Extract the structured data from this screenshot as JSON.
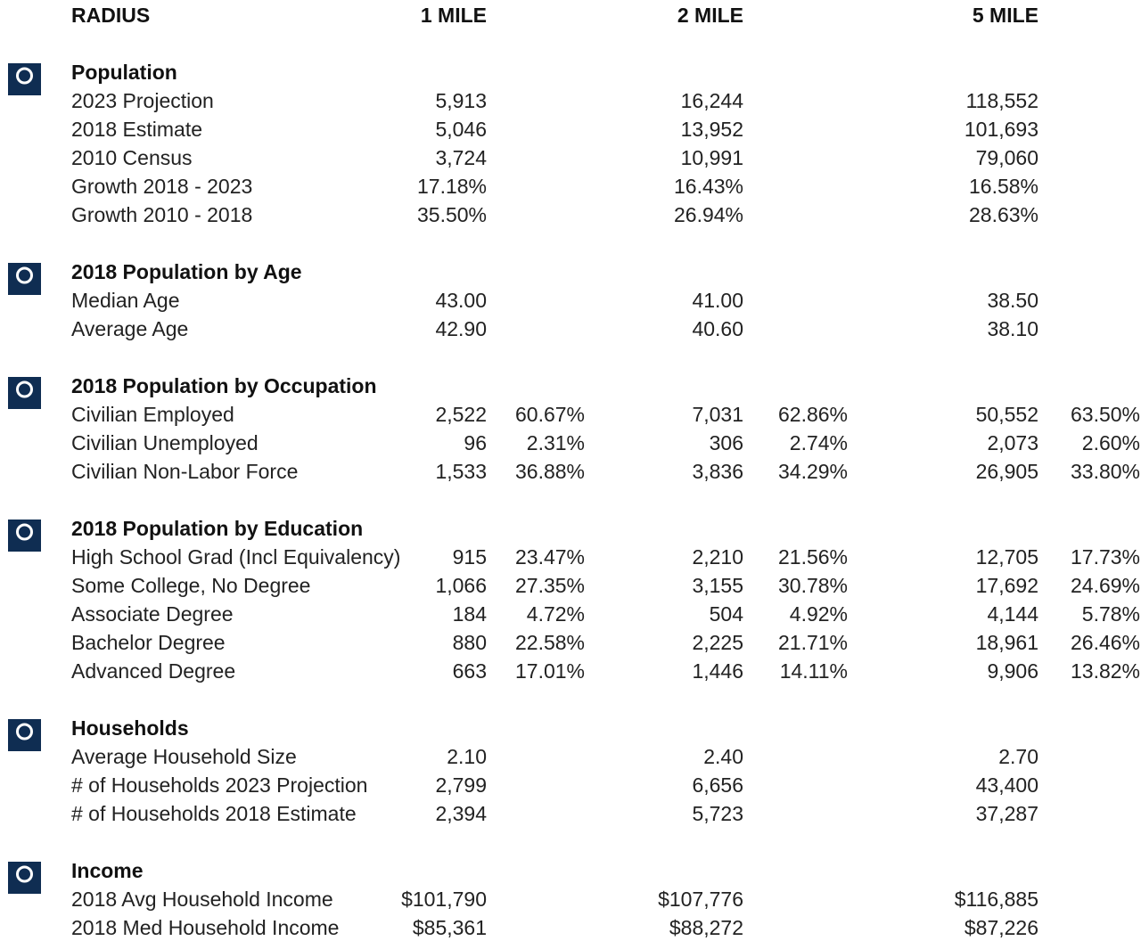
{
  "header": {
    "label": "RADIUS",
    "columns": [
      "1 MILE",
      "2 MILE",
      "5 MILE"
    ]
  },
  "sections": [
    {
      "title": "Population",
      "rows": [
        {
          "label": "2023 Projection",
          "values": [
            "5,913",
            "16,244",
            "118,552"
          ]
        },
        {
          "label": "2018 Estimate",
          "values": [
            "5,046",
            "13,952",
            "101,693"
          ]
        },
        {
          "label": "2010 Census",
          "values": [
            "3,724",
            "10,991",
            "79,060"
          ]
        },
        {
          "label": "Growth 2018 - 2023",
          "values": [
            "17.18%",
            "16.43%",
            "16.58%"
          ]
        },
        {
          "label": "Growth 2010 - 2018",
          "values": [
            "35.50%",
            "26.94%",
            "28.63%"
          ]
        }
      ]
    },
    {
      "title": "2018 Population by Age",
      "rows": [
        {
          "label": "Median Age",
          "values": [
            "43.00",
            "41.00",
            "38.50"
          ]
        },
        {
          "label": "Average Age",
          "values": [
            "42.90",
            "40.60",
            "38.10"
          ]
        }
      ]
    },
    {
      "title": "2018 Population by Occupation",
      "rows": [
        {
          "label": "Civilian Employed",
          "values": [
            "2,522",
            "60.67%",
            "7,031",
            "62.86%",
            "50,552",
            "63.50%"
          ]
        },
        {
          "label": "Civilian Unemployed",
          "values": [
            "96",
            "2.31%",
            "306",
            "2.74%",
            "2,073",
            "2.60%"
          ]
        },
        {
          "label": "Civilian Non-Labor Force",
          "values": [
            "1,533",
            "36.88%",
            "3,836",
            "34.29%",
            "26,905",
            "33.80%"
          ]
        }
      ]
    },
    {
      "title": "2018 Population by Education",
      "rows": [
        {
          "label": "High School Grad (Incl Equivalency)",
          "values": [
            "915",
            "23.47%",
            "2,210",
            "21.56%",
            "12,705",
            "17.73%"
          ]
        },
        {
          "label": "Some College, No Degree",
          "values": [
            "1,066",
            "27.35%",
            "3,155",
            "30.78%",
            "17,692",
            "24.69%"
          ]
        },
        {
          "label": "Associate Degree",
          "values": [
            "184",
            "4.72%",
            "504",
            "4.92%",
            "4,144",
            "5.78%"
          ]
        },
        {
          "label": "Bachelor Degree",
          "values": [
            "880",
            "22.58%",
            "2,225",
            "21.71%",
            "18,961",
            "26.46%"
          ]
        },
        {
          "label": "Advanced Degree",
          "values": [
            "663",
            "17.01%",
            "1,446",
            "14.11%",
            "9,906",
            "13.82%"
          ]
        }
      ]
    },
    {
      "title": "Households",
      "rows": [
        {
          "label": "Average Household Size",
          "values": [
            "2.10",
            "2.40",
            "2.70"
          ]
        },
        {
          "label": "# of Households 2023 Projection",
          "values": [
            "2,799",
            "6,656",
            "43,400"
          ]
        },
        {
          "label": "# of Households 2018 Estimate",
          "values": [
            "2,394",
            "5,723",
            "37,287"
          ]
        }
      ]
    },
    {
      "title": "Income",
      "rows": [
        {
          "label": "2018 Avg Household Income",
          "values": [
            "$101,790",
            "$107,776",
            "$116,885"
          ]
        },
        {
          "label": "2018 Med Household Income",
          "values": [
            "$85,361",
            "$88,272",
            "$87,226"
          ]
        }
      ]
    }
  ]
}
